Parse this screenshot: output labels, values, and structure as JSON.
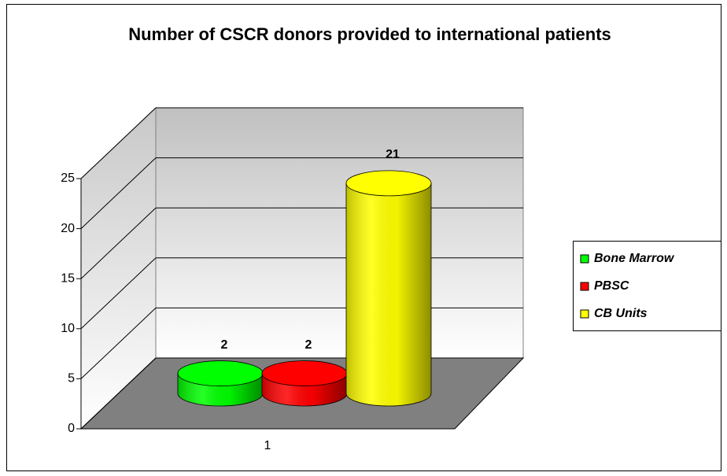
{
  "chart_data": {
    "type": "bar3d",
    "title": "Number of CSCR donors provided to international patients",
    "categories": [
      "1"
    ],
    "series": [
      {
        "name": "Bone Marrow",
        "color": "#00ff00",
        "values": [
          2
        ]
      },
      {
        "name": "PBSC",
        "color": "#ff0000",
        "values": [
          2
        ]
      },
      {
        "name": "CB Units",
        "color": "#ffff00",
        "values": [
          21
        ]
      }
    ],
    "ylim": [
      0,
      25
    ],
    "yticks": [
      0,
      5,
      10,
      15,
      20,
      25
    ],
    "grid": true,
    "legend": "right"
  }
}
